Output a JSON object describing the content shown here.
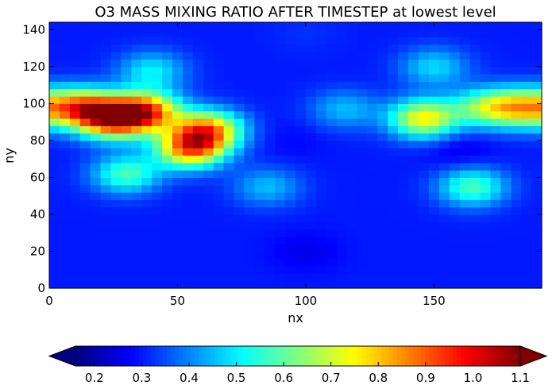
{
  "chart_data": {
    "type": "heatmap",
    "title": "O3 MASS MIXING RATIO AFTER TIMESTEP  at lowest level",
    "xlabel": "nx",
    "ylabel": "ny",
    "xlim": [
      0,
      192
    ],
    "ylim": [
      0,
      144
    ],
    "x_ticks": [
      "0",
      "50",
      "100",
      "150"
    ],
    "x_tick_values": [
      0,
      50,
      100,
      150
    ],
    "y_ticks": [
      "0",
      "20",
      "40",
      "60",
      "80",
      "100",
      "120",
      "140"
    ],
    "y_tick_values": [
      0,
      20,
      40,
      60,
      80,
      100,
      120,
      140
    ],
    "colormap": "jet",
    "colorbar": {
      "orientation": "horizontal",
      "placement": "bottom",
      "range": [
        0.16,
        1.1
      ],
      "extend": "both",
      "tick_values": [
        0.2,
        0.3,
        0.4,
        0.5,
        0.6,
        0.7,
        0.8,
        0.9,
        1.0,
        1.1
      ],
      "tick_labels": [
        "0.2",
        "0.3",
        "0.4",
        "0.5",
        "0.6",
        "0.7",
        "0.8",
        "0.9",
        "1.0",
        "1.1"
      ]
    },
    "regions": [
      {
        "x": 25,
        "y": 92,
        "value": 0.93
      },
      {
        "x": 38,
        "y": 96,
        "value": 0.85
      },
      {
        "x": 12,
        "y": 98,
        "value": 0.8
      },
      {
        "x": 62,
        "y": 86,
        "value": 0.8
      },
      {
        "x": 55,
        "y": 76,
        "value": 0.85
      },
      {
        "x": 185,
        "y": 98,
        "value": 0.72
      },
      {
        "x": 146,
        "y": 92,
        "value": 0.75
      },
      {
        "x": 170,
        "y": 98,
        "value": 0.6
      },
      {
        "x": 115,
        "y": 97,
        "value": 0.45
      },
      {
        "x": 30,
        "y": 62,
        "value": 0.58
      },
      {
        "x": 165,
        "y": 55,
        "value": 0.58
      },
      {
        "x": 85,
        "y": 55,
        "value": 0.45
      },
      {
        "x": 95,
        "y": 80,
        "value": 0.28
      },
      {
        "x": 130,
        "y": 70,
        "value": 0.3
      },
      {
        "x": 100,
        "y": 20,
        "value": 0.26
      },
      {
        "x": 100,
        "y": 138,
        "value": 0.32
      },
      {
        "x": 40,
        "y": 118,
        "value": 0.5
      },
      {
        "x": 150,
        "y": 120,
        "value": 0.48
      },
      {
        "x": 160,
        "y": 75,
        "value": 0.25
      }
    ],
    "baseline_value": 0.3
  }
}
